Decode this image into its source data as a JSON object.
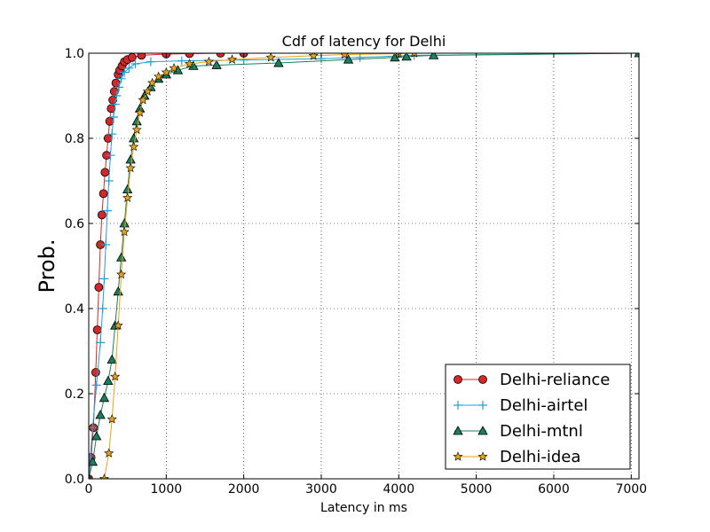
{
  "chart_data": {
    "type": "line",
    "title": "Cdf of latency for Delhi",
    "xlabel": "Latency in ms",
    "ylabel": "Prob.",
    "xlim": [
      0,
      7100
    ],
    "ylim": [
      0.0,
      1.0
    ],
    "xticks": [
      "0",
      "1000",
      "2000",
      "3000",
      "4000",
      "5000",
      "6000",
      "7000"
    ],
    "yticks": [
      "0.0",
      "0.2",
      "0.4",
      "0.6",
      "0.8",
      "1.0"
    ],
    "grid": true,
    "legend_position": "lower-right",
    "series": [
      {
        "name": "Delhi-reliance",
        "color": "#d62728",
        "marker": "circle",
        "x": [
          0,
          30,
          60,
          90,
          110,
          130,
          150,
          170,
          190,
          210,
          230,
          250,
          270,
          290,
          310,
          330,
          350,
          380,
          400,
          430,
          460,
          500,
          560,
          680,
          1000,
          1300,
          1700,
          2000
        ],
        "y": [
          0.0,
          0.05,
          0.12,
          0.25,
          0.35,
          0.45,
          0.55,
          0.62,
          0.67,
          0.72,
          0.76,
          0.8,
          0.84,
          0.87,
          0.89,
          0.91,
          0.93,
          0.95,
          0.96,
          0.97,
          0.98,
          0.985,
          0.99,
          0.995,
          0.998,
          0.999,
          1.0,
          1.0
        ]
      },
      {
        "name": "Delhi-airtel",
        "color": "#1f9fd6",
        "marker": "plus",
        "x": [
          0,
          20,
          50,
          100,
          150,
          180,
          200,
          220,
          240,
          260,
          280,
          300,
          320,
          340,
          360,
          390,
          420,
          460,
          520,
          600,
          800,
          1200,
          2000,
          3000,
          3500,
          4200,
          7100
        ],
        "y": [
          0.0,
          0.05,
          0.12,
          0.22,
          0.32,
          0.4,
          0.47,
          0.55,
          0.63,
          0.7,
          0.76,
          0.81,
          0.85,
          0.88,
          0.9,
          0.92,
          0.94,
          0.955,
          0.965,
          0.975,
          0.98,
          0.982,
          0.984,
          0.987,
          0.99,
          0.995,
          1.0
        ]
      },
      {
        "name": "Delhi-mtnl",
        "color": "#1a7f5a",
        "marker": "triangle",
        "x": [
          0,
          50,
          100,
          150,
          200,
          250,
          300,
          340,
          380,
          420,
          460,
          500,
          540,
          580,
          620,
          660,
          720,
          800,
          900,
          1000,
          1150,
          1350,
          1650,
          2450,
          3350,
          3950,
          4100,
          4450,
          7100
        ],
        "y": [
          0.0,
          0.04,
          0.1,
          0.15,
          0.19,
          0.23,
          0.28,
          0.36,
          0.44,
          0.52,
          0.6,
          0.68,
          0.75,
          0.8,
          0.84,
          0.87,
          0.9,
          0.92,
          0.94,
          0.95,
          0.96,
          0.97,
          0.972,
          0.977,
          0.985,
          0.99,
          0.992,
          0.995,
          1.0
        ]
      },
      {
        "name": "Delhi-idea",
        "color": "#e8a317",
        "marker": "star",
        "x": [
          200,
          260,
          300,
          340,
          380,
          420,
          460,
          500,
          540,
          580,
          620,
          660,
          700,
          760,
          820,
          900,
          1000,
          1100,
          1300,
          1550,
          1850,
          2350,
          2900,
          3300,
          4000,
          4200
        ],
        "y": [
          0.0,
          0.06,
          0.14,
          0.24,
          0.36,
          0.48,
          0.58,
          0.66,
          0.73,
          0.78,
          0.82,
          0.86,
          0.89,
          0.91,
          0.93,
          0.945,
          0.955,
          0.965,
          0.975,
          0.98,
          0.985,
          0.99,
          0.994,
          0.997,
          0.999,
          1.0
        ]
      }
    ]
  }
}
